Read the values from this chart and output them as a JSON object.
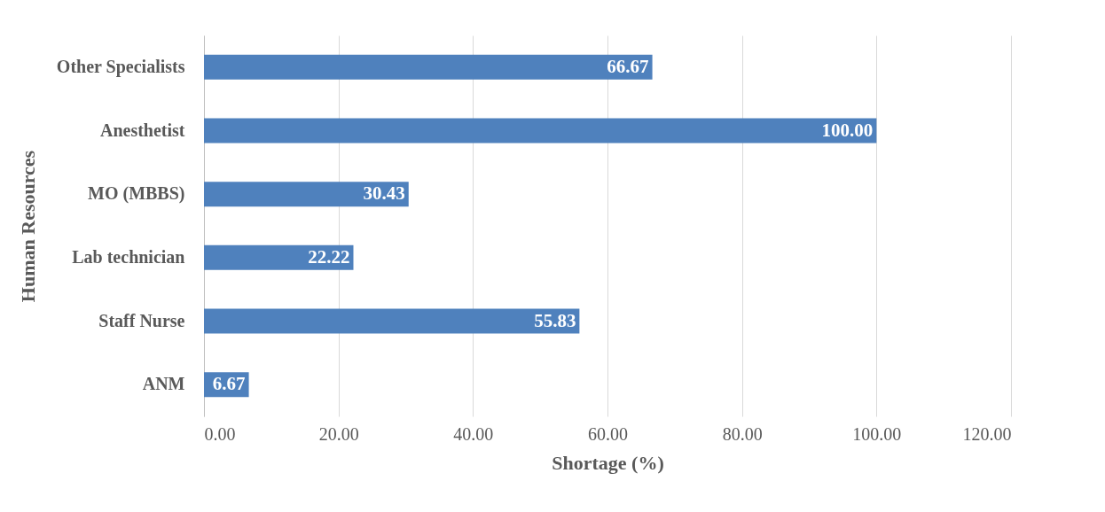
{
  "chart_data": {
    "type": "bar",
    "orientation": "horizontal",
    "xlabel": "Shortage (%)",
    "ylabel": "Human Resources",
    "categories": [
      "Other Specialists",
      "Anesthetist",
      "MO (MBBS)",
      "Lab technician",
      "Staff Nurse",
      "ANM"
    ],
    "values": [
      66.67,
      100.0,
      30.43,
      22.22,
      55.83,
      6.67
    ],
    "value_labels": [
      "66.67",
      "100.00",
      "30.43",
      "22.22",
      "55.83",
      "6.67"
    ],
    "color": "#4f81bd",
    "xlim": [
      0,
      120
    ],
    "xticks": [
      {
        "value": 0,
        "label": "0.00"
      },
      {
        "value": 20,
        "label": "20.00"
      },
      {
        "value": 40,
        "label": "40.00"
      },
      {
        "value": 60,
        "label": "60.00"
      },
      {
        "value": 80,
        "label": "80.00"
      },
      {
        "value": 100,
        "label": "100.00"
      },
      {
        "value": 120,
        "label": "120.00"
      }
    ],
    "grid": "x"
  }
}
